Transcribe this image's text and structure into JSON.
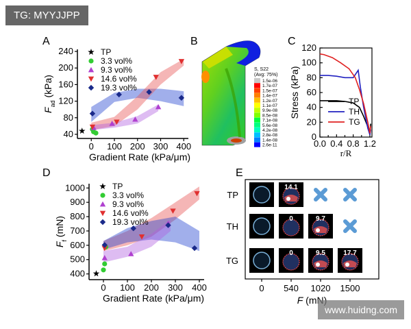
{
  "header": {
    "badge": "TG: MYYJJPP"
  },
  "footer": {
    "watermark": "www.huidng.com"
  },
  "panels": {
    "A": {
      "letter": "A"
    },
    "B": {
      "letter": "B",
      "legend_title": "S, S22",
      "legend_sub": "(Avg: 75%)",
      "legend_values": [
        "1.5e-06",
        "1.7e-07",
        "1.5e-07",
        "1.4e-07",
        "1.2e-07",
        "1.1e-07",
        "9.9e-08",
        "8.5e-08",
        "7.1e-08",
        "5.6e-08",
        "4.2e-08",
        "2.8e-08",
        "1.4e-08",
        "2.6e-11"
      ],
      "legend_colors": [
        "#c8c8c8",
        "#ff0000",
        "#ff4000",
        "#ff8000",
        "#ffbf00",
        "#ffff00",
        "#c0ff00",
        "#80ff00",
        "#00ff40",
        "#00ff80",
        "#00ffc0",
        "#00c0ff",
        "#0080ff",
        "#0000ff"
      ]
    },
    "C": {
      "letter": "C"
    },
    "D": {
      "letter": "D"
    },
    "E": {
      "letter": "E",
      "rows": [
        "TP",
        "TH",
        "TG"
      ],
      "cols": [
        "0",
        "540",
        "1020",
        "1500"
      ],
      "xlabel_var": "F",
      "xlabel_unit": "(mN)",
      "cells": [
        [
          {
            "type": "img",
            "label": ""
          },
          {
            "type": "img",
            "label": "14.1"
          },
          {
            "type": "x",
            "label": ""
          },
          {
            "type": "x",
            "label": ""
          }
        ],
        [
          {
            "type": "img",
            "label": ""
          },
          {
            "type": "img",
            "label": "0"
          },
          {
            "type": "img",
            "label": "9.7"
          },
          {
            "type": "x",
            "label": ""
          }
        ],
        [
          {
            "type": "img",
            "label": ""
          },
          {
            "type": "img",
            "label": "0"
          },
          {
            "type": "img",
            "label": "9.5"
          },
          {
            "type": "img",
            "label": "17.7"
          }
        ]
      ],
      "x_color": "#5b9bd5"
    }
  },
  "chart_data": [
    {
      "panel": "A",
      "type": "scatter",
      "ylabel_var": "F",
      "ylabel_sub": "ad",
      "ylabel_unit": "(kPa)",
      "xlabel": "Gradient Rate (kPa/μm)",
      "xlim": [
        -60,
        420
      ],
      "ylim": [
        30,
        245
      ],
      "xticks": [
        0,
        100,
        200,
        300,
        400
      ],
      "yticks": [
        40,
        80,
        120,
        160,
        200,
        240
      ],
      "series": [
        {
          "name": "TP",
          "color": "#000000",
          "marker": "star",
          "points": [
            [
              -40,
              48
            ]
          ]
        },
        {
          "name": "3.3 vol%",
          "color": "#33cc33",
          "marker": "circle",
          "points": [
            [
              5,
              52
            ],
            [
              10,
              46
            ],
            [
              20,
              43
            ]
          ]
        },
        {
          "name": "9.3 vol%",
          "color": "#b040d0",
          "marker": "triangle",
          "points": [
            [
              10,
              56
            ],
            [
              90,
              66
            ],
            [
              190,
              76
            ],
            [
              290,
              106
            ]
          ]
        },
        {
          "name": "14.6 vol%",
          "color": "#e03030",
          "marker": "triangle-down",
          "points": [
            [
              5,
              58
            ],
            [
              110,
              70
            ],
            [
              280,
              178
            ],
            [
              390,
              216
            ]
          ]
        },
        {
          "name": "19.3 vol%",
          "color": "#1a2a8a",
          "marker": "diamond",
          "points": [
            [
              5,
              90
            ],
            [
              120,
              136
            ],
            [
              250,
              142
            ],
            [
              390,
              128
            ]
          ]
        }
      ],
      "bands": [
        {
          "color": "#2040d0",
          "upper": [
            [
              0,
              106
            ],
            [
              100,
              140
            ],
            [
              200,
              150
            ],
            [
              300,
              150
            ],
            [
              400,
              144
            ]
          ],
          "lower": [
            [
              0,
              70
            ],
            [
              100,
              118
            ],
            [
              200,
              128
            ],
            [
              300,
              120
            ],
            [
              400,
              108
            ]
          ]
        },
        {
          "color": "#e85050",
          "upper": [
            [
              0,
              68
            ],
            [
              100,
              82
            ],
            [
              200,
              132
            ],
            [
              300,
              190
            ],
            [
              400,
              222
            ]
          ],
          "lower": [
            [
              0,
              50
            ],
            [
              100,
              60
            ],
            [
              200,
              100
            ],
            [
              300,
              160
            ],
            [
              400,
              206
            ]
          ]
        },
        {
          "color": "#b060e0",
          "upper": [
            [
              0,
              62
            ],
            [
              100,
              68
            ],
            [
              200,
              84
            ],
            [
              290,
              112
            ]
          ],
          "lower": [
            [
              0,
              50
            ],
            [
              100,
              56
            ],
            [
              200,
              66
            ],
            [
              290,
              96
            ]
          ]
        }
      ]
    },
    {
      "panel": "C",
      "type": "line",
      "ylabel": "Stress (kPa)",
      "xlabel": "r/R",
      "xlim": [
        0,
        1.25
      ],
      "ylim": [
        0,
        120
      ],
      "xticks": [
        0.0,
        0.4,
        0.8,
        1.2
      ],
      "xtick_labels": [
        "0.0",
        "0.4",
        "0.8",
        "1.2"
      ],
      "xminor": [
        0.2,
        0.6,
        1.0
      ],
      "yticks": [
        0,
        20,
        40,
        60,
        80,
        100,
        120
      ],
      "series": [
        {
          "name": "TP",
          "color": "#000000",
          "points": [
            [
              0,
              49
            ],
            [
              0.2,
              49
            ],
            [
              0.4,
              49
            ],
            [
              0.6,
              48
            ],
            [
              0.8,
              46
            ],
            [
              0.95,
              40
            ],
            [
              1.05,
              28
            ],
            [
              1.15,
              14
            ],
            [
              1.2,
              5
            ],
            [
              1.22,
              18
            ]
          ]
        },
        {
          "name": "TH",
          "color": "#2020c0",
          "points": [
            [
              0,
              83
            ],
            [
              0.2,
              83
            ],
            [
              0.4,
              82
            ],
            [
              0.6,
              80
            ],
            [
              0.8,
              80
            ],
            [
              0.92,
              90
            ],
            [
              0.97,
              68
            ],
            [
              1.05,
              40
            ],
            [
              1.15,
              12
            ],
            [
              1.2,
              3
            ],
            [
              1.22,
              10
            ]
          ]
        },
        {
          "name": "TG",
          "color": "#e02020",
          "points": [
            [
              0,
              112
            ],
            [
              0.1,
              111
            ],
            [
              0.3,
              107
            ],
            [
              0.5,
              100
            ],
            [
              0.7,
              92
            ],
            [
              0.85,
              80
            ],
            [
              0.95,
              64
            ],
            [
              1.05,
              45
            ],
            [
              1.15,
              20
            ],
            [
              1.2,
              5
            ],
            [
              1.22,
              15
            ]
          ]
        }
      ]
    },
    {
      "panel": "D",
      "type": "scatter",
      "ylabel_var": "F",
      "ylabel_sub": "f",
      "ylabel_unit": "(mN)",
      "xlabel": "Gradient Rate (kPa/μm)",
      "xlim": [
        -60,
        420
      ],
      "ylim": [
        360,
        1030
      ],
      "xticks": [
        0,
        100,
        200,
        300,
        400
      ],
      "yticks": [
        400,
        500,
        600,
        700,
        800,
        900,
        1000
      ],
      "series": [
        {
          "name": "TP",
          "color": "#000000",
          "marker": "star",
          "points": [
            [
              -30,
              402
            ]
          ]
        },
        {
          "name": "3.3 vol%",
          "color": "#33cc33",
          "marker": "circle",
          "points": [
            [
              0,
              428
            ],
            [
              5,
              470
            ],
            [
              10,
              588
            ]
          ]
        },
        {
          "name": "9.3 vol%",
          "color": "#b040d0",
          "marker": "triangle",
          "points": [
            [
              5,
              512
            ],
            [
              115,
              540
            ],
            [
              270,
              752
            ]
          ]
        },
        {
          "name": "14.6 vol%",
          "color": "#e03030",
          "marker": "triangle-down",
          "points": [
            [
              5,
              580
            ],
            [
              160,
              660
            ],
            [
              290,
              840
            ],
            [
              390,
              962
            ]
          ]
        },
        {
          "name": "19.3 vol%",
          "color": "#1a2a8a",
          "marker": "diamond",
          "points": [
            [
              5,
              602
            ],
            [
              125,
              718
            ],
            [
              270,
              740
            ],
            [
              380,
              580
            ]
          ]
        }
      ],
      "bands": [
        {
          "color": "#e85050",
          "upper": [
            [
              0,
              630
            ],
            [
              100,
              700
            ],
            [
              200,
              790
            ],
            [
              300,
              900
            ],
            [
              400,
              1010
            ]
          ],
          "lower": [
            [
              0,
              560
            ],
            [
              100,
              600
            ],
            [
              200,
              660
            ],
            [
              300,
              780
            ],
            [
              400,
              920
            ]
          ]
        },
        {
          "color": "#2040d0",
          "upper": [
            [
              0,
              630
            ],
            [
              100,
              720
            ],
            [
              200,
              770
            ],
            [
              300,
              800
            ],
            [
              400,
              700
            ]
          ],
          "lower": [
            [
              0,
              570
            ],
            [
              100,
              620
            ],
            [
              200,
              640
            ],
            [
              300,
              620
            ],
            [
              400,
              560
            ]
          ]
        },
        {
          "color": "#b060e0",
          "upper": [
            [
              0,
              560
            ],
            [
              100,
              590
            ],
            [
              200,
              680
            ],
            [
              280,
              780
            ]
          ],
          "lower": [
            [
              0,
              480
            ],
            [
              100,
              520
            ],
            [
              200,
              590
            ],
            [
              280,
              700
            ]
          ]
        }
      ]
    }
  ]
}
